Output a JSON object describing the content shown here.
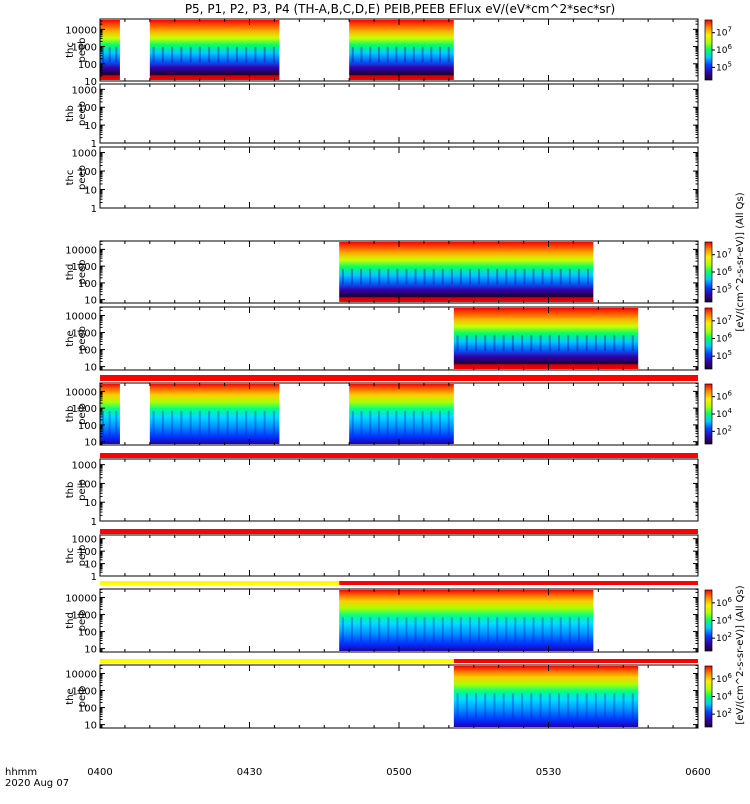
{
  "title": "P5, P1, P2, P3, P4 (TH-A,B,C,D,E) PEIB,PEEB EFlux eV/(eV*cm^2*sec*sr)",
  "footer": {
    "time_label": "hhmm",
    "date_label": "2020 Aug 07"
  },
  "colorbar_label_electron": "[eV/(cm^2-s-sr-eV)] (All Qs)",
  "colorbar_label_ion": "[eV/(cm^2-s-sr-eV)] (All Qs)",
  "chart_data": {
    "type": "heatmap",
    "x_axis": {
      "range": [
        "0400",
        "0600"
      ],
      "ticks": [
        "0400",
        "0430",
        "0500",
        "0530",
        "0600"
      ]
    },
    "panels": [
      {
        "probe": "thc",
        "product": "peeb",
        "label_top": "thc",
        "label_bottom": "peeb",
        "y_log_range": [
          1,
          4.6
        ],
        "y_ticks": [
          "10",
          "100",
          "1000",
          "10000"
        ],
        "data_intervals": [
          [
            "0400",
            "0404"
          ],
          [
            "0410",
            "0436"
          ],
          [
            "0450",
            "0511"
          ]
        ],
        "colorbar": {
          "ticks": [
            "10^5",
            "10^6",
            "10^7"
          ]
        },
        "flag_bar": null
      },
      {
        "probe": "thb",
        "product": "peeb",
        "label_top": "thb",
        "label_bottom": "peeb",
        "y_log_range": [
          0,
          3.3
        ],
        "y_ticks": [
          "1",
          "10",
          "100",
          "1000"
        ],
        "data_intervals": [],
        "colorbar": null,
        "flag_bar": null
      },
      {
        "probe": "thc",
        "product": "peeb",
        "label_top": "thc",
        "label_bottom": "peeb",
        "y_log_range": [
          0,
          3.3
        ],
        "y_ticks": [
          "1",
          "10",
          "100",
          "1000"
        ],
        "data_intervals": [],
        "colorbar": null,
        "flag_bar": null
      },
      {
        "probe": "thd",
        "product": "peeb",
        "label_top": "thd",
        "label_bottom": "peeb",
        "y_log_range": [
          0.8,
          4.5
        ],
        "y_ticks": [
          "10",
          "100",
          "1000",
          "10000"
        ],
        "data_intervals": [
          [
            "0448",
            "0539"
          ]
        ],
        "colorbar": {
          "ticks": [
            "10^5",
            "10^6",
            "10^7"
          ]
        },
        "flag_bar": null
      },
      {
        "probe": "the",
        "product": "peeb",
        "label_top": "the",
        "label_bottom": "peeb",
        "y_log_range": [
          0.8,
          4.5
        ],
        "y_ticks": [
          "10",
          "100",
          "1000",
          "10000"
        ],
        "data_intervals": [
          [
            "0511",
            "0548"
          ]
        ],
        "colorbar": {
          "ticks": [
            "10^5",
            "10^6",
            "10^7"
          ]
        },
        "flag_bar": null
      },
      {
        "probe": "thb",
        "product": "peib",
        "label_top": "thb",
        "label_bottom": "peib",
        "y_log_range": [
          0.8,
          4.5
        ],
        "y_ticks": [
          "10",
          "100",
          "1000",
          "10000"
        ],
        "data_intervals": [
          [
            "0400",
            "0404"
          ],
          [
            "0410",
            "0436"
          ],
          [
            "0450",
            "0511"
          ]
        ],
        "colorbar": {
          "ticks": [
            "10^2",
            "10^4",
            "10^6"
          ]
        },
        "flag_bar": {
          "segments": [
            [
              "0400",
              "0600",
              "#ff0000"
            ]
          ]
        }
      },
      {
        "probe": "thb",
        "product": "peib",
        "label_top": "thb",
        "label_bottom": "peib",
        "y_log_range": [
          0,
          3.3
        ],
        "y_ticks": [
          "1",
          "10",
          "100",
          "1000"
        ],
        "data_intervals": [],
        "colorbar": null,
        "flag_bar": {
          "segments": [
            [
              "0400",
              "0600",
              "#ff0000"
            ]
          ]
        }
      },
      {
        "probe": "thc",
        "product": "peib",
        "label_top": "thc",
        "label_bottom": "peib",
        "y_log_range": [
          0,
          3.3
        ],
        "y_ticks": [
          "1",
          "10",
          "100",
          "1000"
        ],
        "data_intervals": [],
        "colorbar": null,
        "flag_bar": {
          "segments": [
            [
              "0400",
              "0600",
              "#ff0000"
            ]
          ]
        }
      },
      {
        "probe": "thd",
        "product": "peib",
        "label_top": "thd",
        "label_bottom": "peib",
        "y_log_range": [
          0.8,
          4.5
        ],
        "y_ticks": [
          "10",
          "100",
          "1000",
          "10000"
        ],
        "data_intervals": [
          [
            "0448",
            "0539"
          ]
        ],
        "colorbar": {
          "ticks": [
            "10^2",
            "10^4",
            "10^6"
          ]
        },
        "flag_bar": {
          "segments": [
            [
              "0400",
              "0448",
              "#ffff00"
            ],
            [
              "0448",
              "0600",
              "#ff0000"
            ]
          ]
        }
      },
      {
        "probe": "the",
        "product": "peib",
        "label_top": "the",
        "label_bottom": "peib",
        "y_log_range": [
          0.8,
          4.5
        ],
        "y_ticks": [
          "10",
          "100",
          "1000",
          "10000"
        ],
        "data_intervals": [
          [
            "0511",
            "0548"
          ]
        ],
        "colorbar": {
          "ticks": [
            "10^2",
            "10^4",
            "10^6"
          ]
        },
        "flag_bar": {
          "segments": [
            [
              "0400",
              "0511",
              "#ffff00"
            ],
            [
              "0511",
              "0600",
              "#ff0000"
            ]
          ]
        }
      }
    ]
  }
}
